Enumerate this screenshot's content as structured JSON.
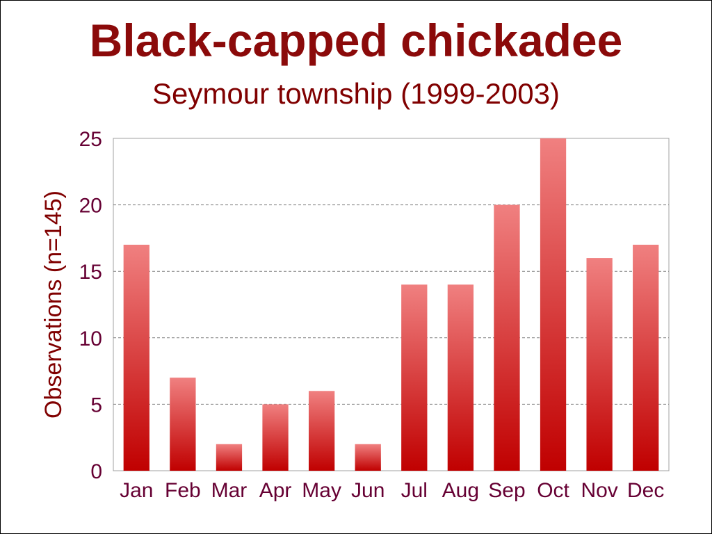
{
  "chart_data": {
    "type": "bar",
    "title": "Black-capped chickadee",
    "subtitle": "Seymour township (1999-2003)",
    "xlabel": "",
    "ylabel": "Observations (n=145)",
    "categories": [
      "Jan",
      "Feb",
      "Mar",
      "Apr",
      "May",
      "Jun",
      "Jul",
      "Aug",
      "Sep",
      "Oct",
      "Nov",
      "Dec"
    ],
    "values": [
      17,
      7,
      2,
      5,
      6,
      2,
      14,
      14,
      20,
      25,
      16,
      17
    ],
    "ylim": [
      0,
      25
    ],
    "yticks": [
      0,
      5,
      10,
      15,
      20,
      25
    ],
    "grid": true,
    "legend": "none",
    "colors": {
      "bar_top": "#f08080",
      "bar_bottom": "#c00000",
      "title": "#8b0a0a",
      "axis_text": "#660033",
      "gridline": "#808080"
    }
  }
}
